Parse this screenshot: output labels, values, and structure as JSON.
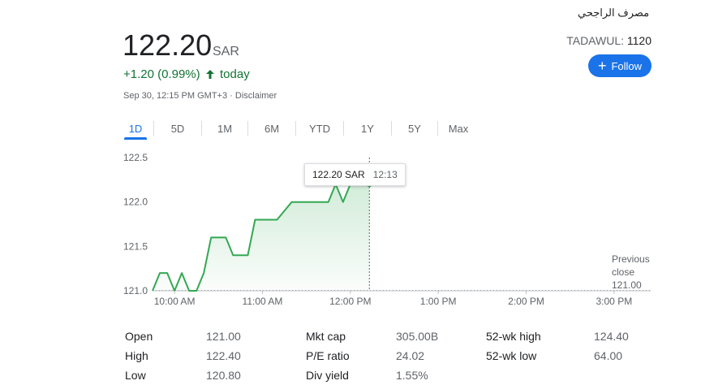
{
  "header": {
    "company_name": "مصرف الراجحي",
    "price": "122.20",
    "currency": "SAR",
    "exchange_label": "TADAWUL:",
    "ticker": "1120",
    "follow_label": "Follow",
    "change_text": "+1.20 (0.99%)",
    "change_period": "today",
    "timestamp": "Sep 30, 12:15 PM GMT+3 · Disclaimer"
  },
  "colors": {
    "up": "#137333",
    "line": "#34a853",
    "accent": "#1a73e8"
  },
  "tabs": [
    {
      "label": "1D",
      "active": true
    },
    {
      "label": "5D",
      "active": false
    },
    {
      "label": "1M",
      "active": false
    },
    {
      "label": "6M",
      "active": false
    },
    {
      "label": "YTD",
      "active": false
    },
    {
      "label": "1Y",
      "active": false
    },
    {
      "label": "5Y",
      "active": false
    },
    {
      "label": "Max",
      "active": false
    }
  ],
  "tooltip": {
    "price": "122.20 SAR",
    "time": "12:13"
  },
  "previous_close": {
    "line1": "Previous",
    "line2": "close",
    "value": "121.00"
  },
  "chart_data": {
    "type": "line",
    "y_ticks": [
      "122.5",
      "122.0",
      "121.5",
      "121.0"
    ],
    "ylim": [
      121.0,
      122.5
    ],
    "x_ticks": [
      "10:00 AM",
      "11:00 AM",
      "12:00 PM",
      "1:00 PM",
      "2:00 PM",
      "3:00 PM"
    ],
    "x_tick_minutes": [
      600,
      660,
      720,
      780,
      840,
      900
    ],
    "xlim_minutes": [
      585,
      925
    ],
    "previous_close": 121.0,
    "series": [
      {
        "x_minutes": [
          585,
          590,
          595,
          600,
          605,
          610,
          615,
          620,
          625,
          630,
          635,
          640,
          645,
          650,
          655,
          660,
          665,
          670,
          675,
          680,
          685,
          690,
          695,
          700,
          705,
          710,
          715,
          720,
          725,
          730,
          733
        ],
        "values": [
          121.0,
          121.2,
          121.2,
          121.0,
          121.2,
          121.0,
          121.0,
          121.2,
          121.6,
          121.6,
          121.6,
          121.4,
          121.4,
          121.4,
          121.8,
          121.8,
          121.8,
          121.8,
          121.9,
          122.0,
          122.0,
          122.0,
          122.0,
          122.0,
          122.0,
          122.2,
          122.0,
          122.2,
          122.2,
          122.2,
          122.2
        ]
      }
    ],
    "cursor_minute": 733,
    "grid": false
  },
  "stats": {
    "col1": [
      {
        "label": "Open",
        "value": "121.00"
      },
      {
        "label": "High",
        "value": "122.40"
      },
      {
        "label": "Low",
        "value": "120.80"
      }
    ],
    "col2": [
      {
        "label": "Mkt cap",
        "value": "305.00B"
      },
      {
        "label": "P/E ratio",
        "value": "24.02"
      },
      {
        "label": "Div yield",
        "value": "1.55%"
      }
    ],
    "col3": [
      {
        "label": "52-wk high",
        "value": "124.40"
      },
      {
        "label": "52-wk low",
        "value": "64.00"
      }
    ]
  }
}
